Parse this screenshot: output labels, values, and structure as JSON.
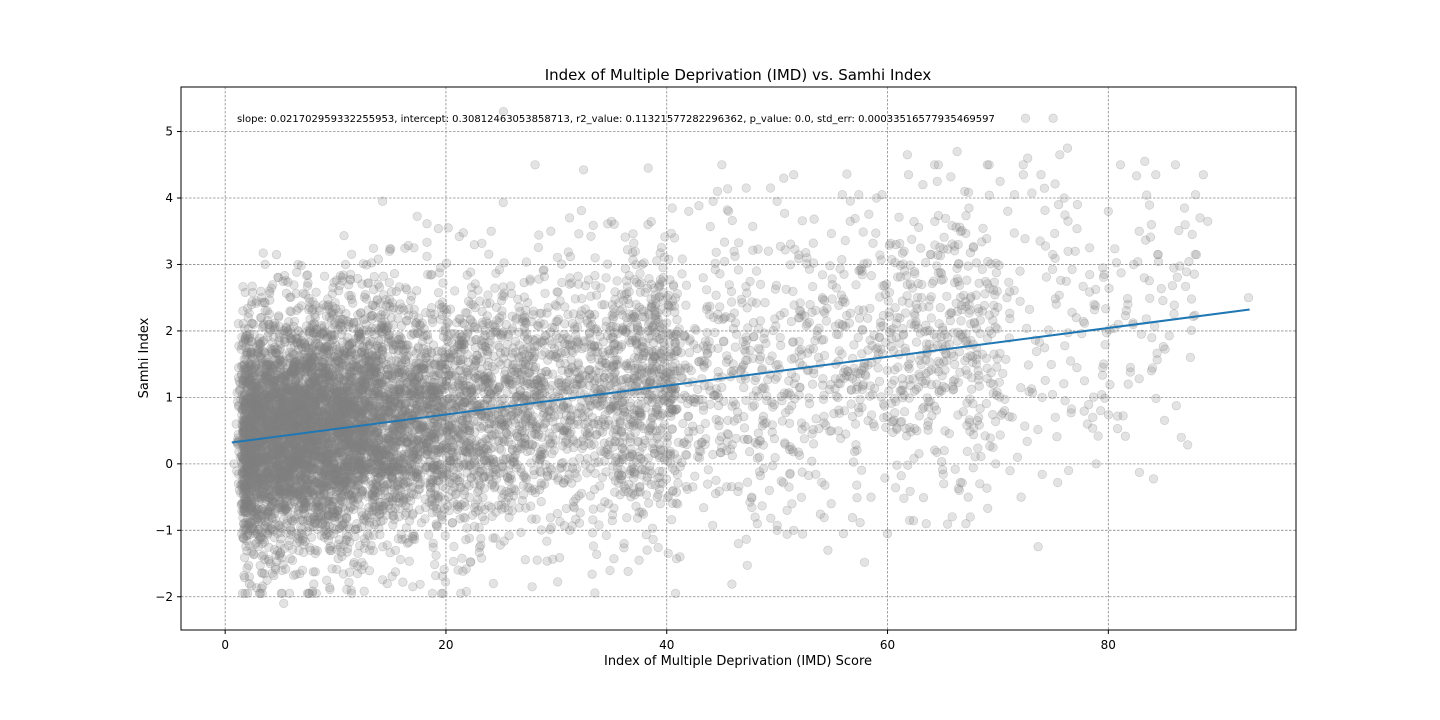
{
  "chart_data": {
    "type": "scatter",
    "title": "Index of Multiple Deprivation (IMD) vs. Samhi Index",
    "xlabel": "Index of Multiple Deprivation (IMD) Score",
    "ylabel": "Samhi Index",
    "xlim": [
      -4.0,
      97.0
    ],
    "ylim": [
      -2.5,
      5.67
    ],
    "x_ticks": [
      0,
      20,
      40,
      60,
      80
    ],
    "y_ticks": [
      -2,
      -1,
      0,
      1,
      2,
      3,
      4,
      5
    ],
    "tick_labels_x": [
      "0",
      "20",
      "40",
      "60",
      "80"
    ],
    "tick_labels_y": [
      "−2",
      "−1",
      "0",
      "1",
      "2",
      "3",
      "4",
      "5"
    ],
    "grid": true,
    "annotation": "slope: 0.021702959332255953, intercept: 0.30812463053858713, r2_value: 0.11321577282296362, p_value: 0.0, std_err: 0.00033516577935469597",
    "regression": {
      "slope": 0.021702959332255953,
      "intercept": 0.30812463053858713,
      "x_range": [
        0.6,
        92.8
      ]
    },
    "colors": {
      "points": "#808080",
      "regression_line": "#1f77b4",
      "grid": "#8c8c8c"
    },
    "points_summary": {
      "approx_count": 32000,
      "x_range": [
        0.6,
        92.7
      ],
      "y_range": [
        -2.1,
        5.3
      ],
      "density": "very dense for IMD 2-40 with Samhi -1.5 to 2.5; sparser above IMD 50"
    },
    "points": [
      [
        25.2,
        5.3
      ],
      [
        5.3,
        -2.1
      ],
      [
        2.2,
        -1.7
      ],
      [
        19.6,
        -1.95
      ],
      [
        72.5,
        5.2
      ],
      [
        75.0,
        5.2
      ],
      [
        76.3,
        4.75
      ],
      [
        72.7,
        4.6
      ],
      [
        75.6,
        4.65
      ],
      [
        78.9,
        -0.0
      ],
      [
        81.1,
        4.5
      ],
      [
        83.3,
        4.55
      ],
      [
        84.3,
        4.35
      ],
      [
        88.6,
        4.35
      ],
      [
        92.7,
        2.5
      ],
      [
        87.9,
        4.05
      ],
      [
        88.3,
        3.7
      ],
      [
        89.0,
        3.65
      ],
      [
        87.6,
        3.45
      ],
      [
        86.9,
        3.85
      ],
      [
        83.9,
        3.6
      ],
      [
        82.8,
        3.5
      ],
      [
        82.3,
        3.0
      ],
      [
        80.0,
        3.8
      ],
      [
        84.5,
        3.15
      ],
      [
        83.0,
        1.95
      ],
      [
        82.0,
        1.45
      ],
      [
        83.9,
        1.4
      ],
      [
        81.8,
        1.2
      ],
      [
        80.9,
        2.1
      ],
      [
        78.1,
        0.6
      ],
      [
        76.4,
        -0.1
      ],
      [
        72.1,
        -0.5
      ],
      [
        79.5,
        1.45
      ],
      [
        67.5,
        -0.8
      ],
      [
        67.1,
        -0.9
      ],
      [
        63.5,
        -0.9
      ],
      [
        62.0,
        -0.85
      ],
      [
        60.0,
        -1.05
      ],
      [
        56.0,
        -1.05
      ],
      [
        54.6,
        -1.3
      ],
      [
        51.5,
        -1.0
      ],
      [
        48.2,
        -0.9
      ],
      [
        46.5,
        -1.2
      ],
      [
        41.2,
        -1.4
      ],
      [
        37.5,
        -1.45
      ],
      [
        27.8,
        -1.85
      ],
      [
        24.3,
        -1.8
      ],
      [
        17.0,
        -1.85
      ],
      [
        9.2,
        -1.75
      ],
      [
        7.0,
        -1.6
      ],
      [
        12.0,
        -1.65
      ],
      [
        3.0,
        -0.9
      ],
      [
        1.5,
        -0.6
      ],
      [
        1.2,
        -0.3
      ],
      [
        0.8,
        0.0
      ],
      [
        1.0,
        0.6
      ],
      [
        1.6,
        1.25
      ],
      [
        2.2,
        1.9
      ],
      [
        3.3,
        2.5
      ],
      [
        4.0,
        2.6
      ],
      [
        6.6,
        3.0
      ],
      [
        10.9,
        3.0
      ],
      [
        14.9,
        3.2
      ],
      [
        17.1,
        3.25
      ],
      [
        20.2,
        3.55
      ],
      [
        24.1,
        3.5
      ],
      [
        29.5,
        3.5
      ],
      [
        31.2,
        3.7
      ],
      [
        35.0,
        3.65
      ],
      [
        38.3,
        3.6
      ],
      [
        40.5,
        3.85
      ],
      [
        42.0,
        3.8
      ],
      [
        44.2,
        3.95
      ],
      [
        45.6,
        3.8
      ],
      [
        44.6,
        4.1
      ],
      [
        47.2,
        4.15
      ],
      [
        49.4,
        4.15
      ],
      [
        50.6,
        4.3
      ],
      [
        51.5,
        4.35
      ],
      [
        50.0,
        3.95
      ],
      [
        55.9,
        4.05
      ],
      [
        57.4,
        4.05
      ],
      [
        59.0,
        4.0
      ],
      [
        59.5,
        4.05
      ],
      [
        61.8,
        4.65
      ],
      [
        61.9,
        4.35
      ],
      [
        63.2,
        4.2
      ],
      [
        64.5,
        4.25
      ],
      [
        66.3,
        4.7
      ],
      [
        67.0,
        4.1
      ],
      [
        70.2,
        4.25
      ],
      [
        71.5,
        4.05
      ],
      [
        72.3,
        4.35
      ],
      [
        73.9,
        4.35
      ],
      [
        75.5,
        3.9
      ],
      [
        76.0,
        4.0
      ],
      [
        77.2,
        3.9
      ],
      [
        77.0,
        3.2
      ],
      [
        78.3,
        3.25
      ],
      [
        79.5,
        2.95
      ],
      [
        78.7,
        2.4
      ],
      [
        77.1,
        2.2
      ],
      [
        74.0,
        1.0
      ],
      [
        75.2,
        0.7
      ],
      [
        70.6,
        0.8
      ],
      [
        69.8,
        -0.0
      ],
      [
        66.5,
        -0.4
      ],
      [
        65.1,
        -0.3
      ],
      [
        58.5,
        -0.5
      ],
      [
        54.9,
        -0.6
      ],
      [
        50.9,
        -0.7
      ],
      [
        49.3,
        -0.4
      ],
      [
        45.4,
        0.2
      ],
      [
        47.7,
        -0.5
      ],
      [
        53.3,
        0.3
      ],
      [
        57.1,
        0.6
      ],
      [
        60.4,
        1.2
      ],
      [
        63.8,
        1.8
      ],
      [
        68.6,
        2.3
      ],
      [
        72.0,
        2.9
      ],
      [
        66.4,
        3.3
      ],
      [
        61.5,
        3.2
      ],
      [
        57.7,
        2.9
      ],
      [
        54.1,
        2.5
      ],
      [
        52.7,
        3.1
      ],
      [
        48.5,
        2.7
      ],
      [
        46.1,
        3.2
      ],
      [
        43.3,
        2.8
      ]
    ]
  }
}
